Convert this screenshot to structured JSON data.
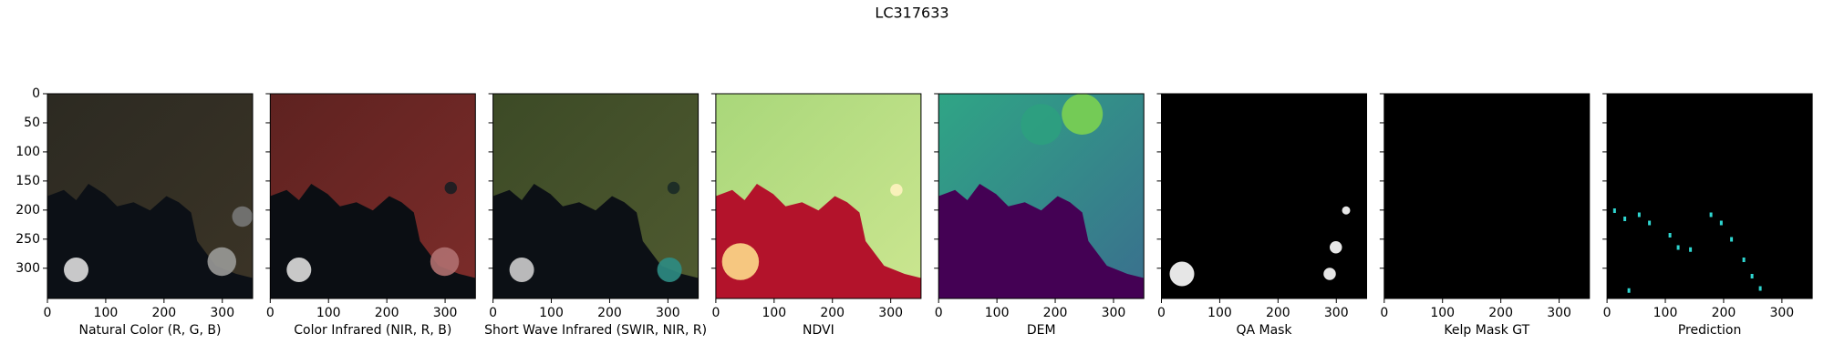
{
  "title": "LC317633",
  "chart_data": [
    {
      "type": "image",
      "xlabel": "Natural Color (R, G, B)",
      "xlim": [
        0,
        352
      ],
      "ylim": [
        352,
        0
      ],
      "xticks": [
        0,
        100,
        200,
        300
      ],
      "yticks": [
        0,
        50,
        100,
        150,
        200,
        250,
        300
      ],
      "ytick_labels": true
    },
    {
      "type": "image",
      "xlabel": "Color Infrared (NIR, R, B)",
      "xlim": [
        0,
        352
      ],
      "ylim": [
        352,
        0
      ],
      "xticks": [
        0,
        100,
        200,
        300
      ],
      "yticks": [
        0,
        50,
        100,
        150,
        200,
        250,
        300
      ],
      "ytick_labels": false
    },
    {
      "type": "image",
      "xlabel": "Short Wave Infrared (SWIR, NIR, R)",
      "xlim": [
        0,
        352
      ],
      "ylim": [
        352,
        0
      ],
      "xticks": [
        0,
        100,
        200,
        300
      ],
      "yticks": [
        0,
        50,
        100,
        150,
        200,
        250,
        300
      ],
      "ytick_labels": false
    },
    {
      "type": "image",
      "xlabel": "NDVI",
      "xlim": [
        0,
        352
      ],
      "ylim": [
        352,
        0
      ],
      "xticks": [
        0,
        100,
        200,
        300
      ],
      "yticks": [
        0,
        50,
        100,
        150,
        200,
        250,
        300
      ],
      "ytick_labels": false
    },
    {
      "type": "image",
      "xlabel": "DEM",
      "xlim": [
        0,
        352
      ],
      "ylim": [
        352,
        0
      ],
      "xticks": [
        0,
        100,
        200,
        300
      ],
      "yticks": [
        0,
        50,
        100,
        150,
        200,
        250,
        300
      ],
      "ytick_labels": false
    },
    {
      "type": "image",
      "xlabel": "QA Mask",
      "xlim": [
        0,
        352
      ],
      "ylim": [
        352,
        0
      ],
      "xticks": [
        0,
        100,
        200,
        300
      ],
      "yticks": [
        0,
        50,
        100,
        150,
        200,
        250,
        300
      ],
      "ytick_labels": false
    },
    {
      "type": "image",
      "xlabel": "Kelp Mask GT",
      "xlim": [
        0,
        352
      ],
      "ylim": [
        352,
        0
      ],
      "xticks": [
        0,
        100,
        200,
        300
      ],
      "yticks": [
        0,
        50,
        100,
        150,
        200,
        250,
        300
      ],
      "ytick_labels": false
    },
    {
      "type": "image",
      "xlabel": "Prediction",
      "xlim": [
        0,
        352
      ],
      "ylim": [
        352,
        0
      ],
      "xticks": [
        0,
        100,
        200,
        300
      ],
      "yticks": [
        0,
        50,
        100,
        150,
        200,
        250,
        300
      ],
      "ytick_labels": false
    }
  ]
}
